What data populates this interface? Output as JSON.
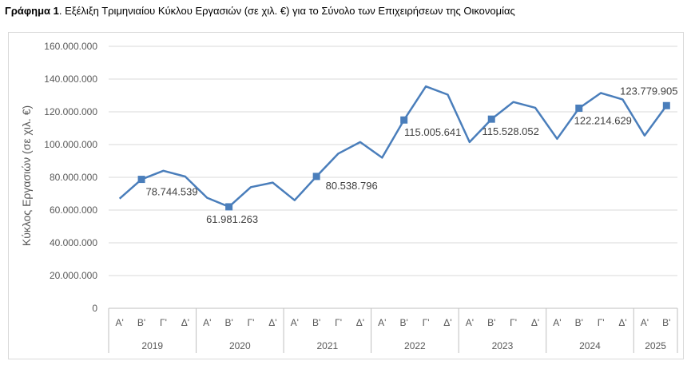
{
  "title": {
    "bold": "Γράφημα 1",
    "rest": ". Εξέλιξη Τριμηνιαίου Κύκλου Εργασιών (σε χιλ. €) για το Σύνολο των Επιχειρήσεων της Οικονομίας"
  },
  "chart_data": {
    "type": "line",
    "ylabel": "Κύκλος Εργασιών (σε χιλ. €)",
    "ylim": [
      0,
      160000000
    ],
    "yticks": [
      "0",
      "20.000.000",
      "40.000.000",
      "60.000.000",
      "80.000.000",
      "100.000.000",
      "120.000.000",
      "140.000.000",
      "160.000.000"
    ],
    "grid": true,
    "line_color": "#4a7ebb",
    "years": [
      {
        "label": "2019",
        "quarters": [
          "Α'",
          "Β'",
          "Γ'",
          "Δ'"
        ]
      },
      {
        "label": "2020",
        "quarters": [
          "Α'",
          "Β'",
          "Γ'",
          "Δ'"
        ]
      },
      {
        "label": "2021",
        "quarters": [
          "Α'",
          "Β'",
          "Γ'",
          "Δ'"
        ]
      },
      {
        "label": "2022",
        "quarters": [
          "Α'",
          "Β'",
          "Γ'",
          "Δ'"
        ]
      },
      {
        "label": "2023",
        "quarters": [
          "Α'",
          "Β'",
          "Γ'",
          "Δ'"
        ]
      },
      {
        "label": "2024",
        "quarters": [
          "Α'",
          "Β'",
          "Γ'",
          "Δ'"
        ]
      },
      {
        "label": "2025",
        "quarters": [
          "Α'",
          "Β'"
        ]
      }
    ],
    "values": [
      67000000,
      78744539,
      84000000,
      80500000,
      67500000,
      61981263,
      74000000,
      76800000,
      66000000,
      80538796,
      94500000,
      101500000,
      92000000,
      115005641,
      135500000,
      130500000,
      101500000,
      115528052,
      126000000,
      122500000,
      103500000,
      122214629,
      131500000,
      127500000,
      105500000,
      123779905
    ],
    "marked": [
      {
        "index": 1,
        "label": "78.744.539"
      },
      {
        "index": 5,
        "label": "61.981.263"
      },
      {
        "index": 9,
        "label": "80.538.796"
      },
      {
        "index": 13,
        "label": "115.005.641"
      },
      {
        "index": 17,
        "label": "115.528.052"
      },
      {
        "index": 21,
        "label": "122.214.629"
      },
      {
        "index": 25,
        "label": "123.779.905"
      }
    ]
  }
}
